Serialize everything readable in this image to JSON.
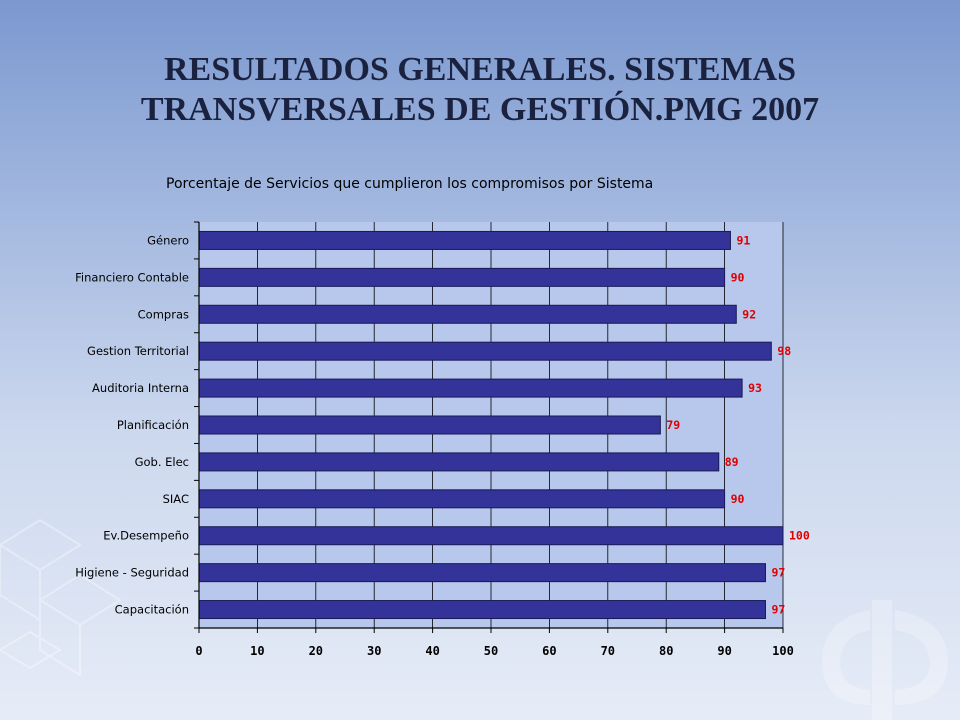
{
  "slide": {
    "title_line1": "RESULTADOS GENERALES. SISTEMAS",
    "title_line2": "TRANSVERSALES DE GESTIÓN.PMG 2007"
  },
  "colors": {
    "bar_fill": "#333399",
    "bar_stroke": "#1a1a55",
    "value_label": "#e00000",
    "plot_bg": "#b8c8ec"
  },
  "chart_data": {
    "type": "bar",
    "orientation": "horizontal",
    "title": "Porcentaje de Servicios que cumplieron los compromisos por Sistema",
    "xlabel": "",
    "ylabel": "",
    "xlim": [
      0,
      100
    ],
    "xticks": [
      0,
      10,
      20,
      30,
      40,
      50,
      60,
      70,
      80,
      90,
      100
    ],
    "grid": true,
    "categories": [
      "Género",
      "Financiero Contable",
      "Compras",
      "Gestion Territorial",
      "Auditoria Interna",
      "Planificación",
      "Gob. Elec",
      "SIAC",
      "Ev.Desempeño",
      "Higiene - Seguridad",
      "Capacitación"
    ],
    "values": [
      91,
      90,
      92,
      98,
      93,
      79,
      89,
      90,
      100,
      97,
      97
    ]
  }
}
